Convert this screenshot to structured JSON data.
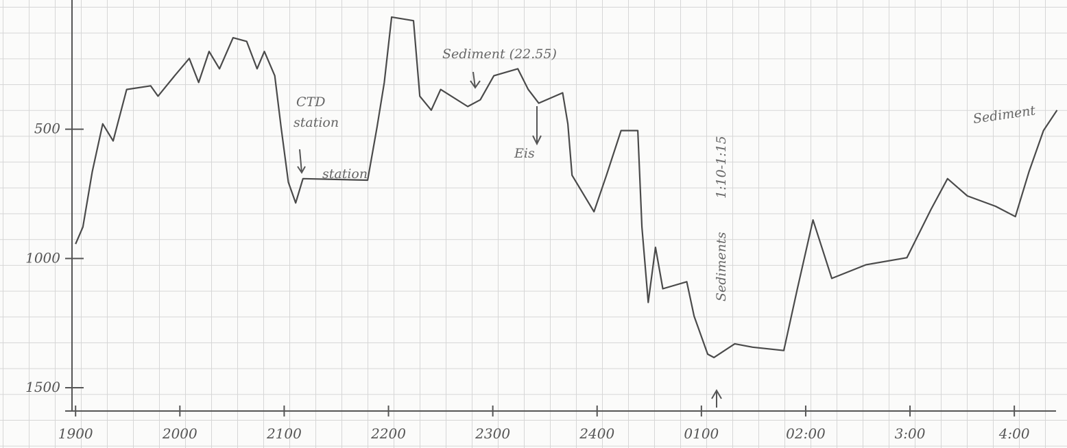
{
  "chart_data": {
    "type": "line",
    "x": [
      19.0,
      19.07,
      19.16,
      19.26,
      19.36,
      19.49,
      19.72,
      19.79,
      19.95,
      20.09,
      20.18,
      20.28,
      20.38,
      20.51,
      20.64,
      20.74,
      20.81,
      20.91,
      20.97,
      21.04,
      21.11,
      21.18,
      21.8,
      21.89,
      21.96,
      22.03,
      22.24,
      22.3,
      22.41,
      22.5,
      22.76,
      22.88,
      23.01,
      23.24,
      23.34,
      23.44,
      23.67,
      23.72,
      23.76,
      23.97,
      24.09,
      24.23,
      24.39,
      24.43,
      24.49,
      24.56,
      24.63,
      24.86,
      24.93,
      25.06,
      25.12,
      25.32,
      25.49,
      25.79,
      25.92,
      26.07,
      26.25,
      26.58,
      26.97,
      27.2,
      27.36,
      27.55,
      27.82,
      28.01,
      28.14,
      28.28,
      28.41
    ],
    "series": [
      {
        "color": "#4a4a4a",
        "values": [
          944,
          878,
          665,
          479,
          545,
          346,
          332,
          372,
          293,
          226,
          319,
          199,
          266,
          146,
          160,
          266,
          199,
          293,
          492,
          705,
          785,
          691,
          697,
          492,
          319,
          66,
          80,
          372,
          426,
          346,
          412,
          386,
          293,
          266,
          346,
          399,
          359,
          479,
          678,
          819,
          678,
          505,
          505,
          878,
          1170,
          957,
          1117,
          1090,
          1223,
          1370,
          1383,
          1330,
          1343,
          1356,
          1117,
          851,
          1077,
          1024,
          997,
          811,
          691,
          758,
          798,
          838,
          665,
          505,
          426
        ]
      }
    ],
    "xlim": [
      18.9,
      28.4
    ],
    "xticks": [
      {
        "value": 19,
        "label": "1900"
      },
      {
        "value": 20,
        "label": "2000"
      },
      {
        "value": 21,
        "label": "2100"
      },
      {
        "value": 22,
        "label": "2200"
      },
      {
        "value": 23,
        "label": "2300"
      },
      {
        "value": 24,
        "label": "2400"
      },
      {
        "value": 25,
        "label": "0100"
      },
      {
        "value": 26,
        "label": "02:00"
      },
      {
        "value": 27,
        "label": "3:00"
      },
      {
        "value": 28,
        "label": "4:00"
      }
    ],
    "ylim": [
      1590,
      0
    ],
    "yticks": [
      500,
      1000,
      1500
    ],
    "annotations": [
      "CTD",
      "station",
      "station",
      "Sediment (22.55)",
      "Eis",
      "1:10-1:15",
      "Sediments",
      "Sediment"
    ]
  }
}
